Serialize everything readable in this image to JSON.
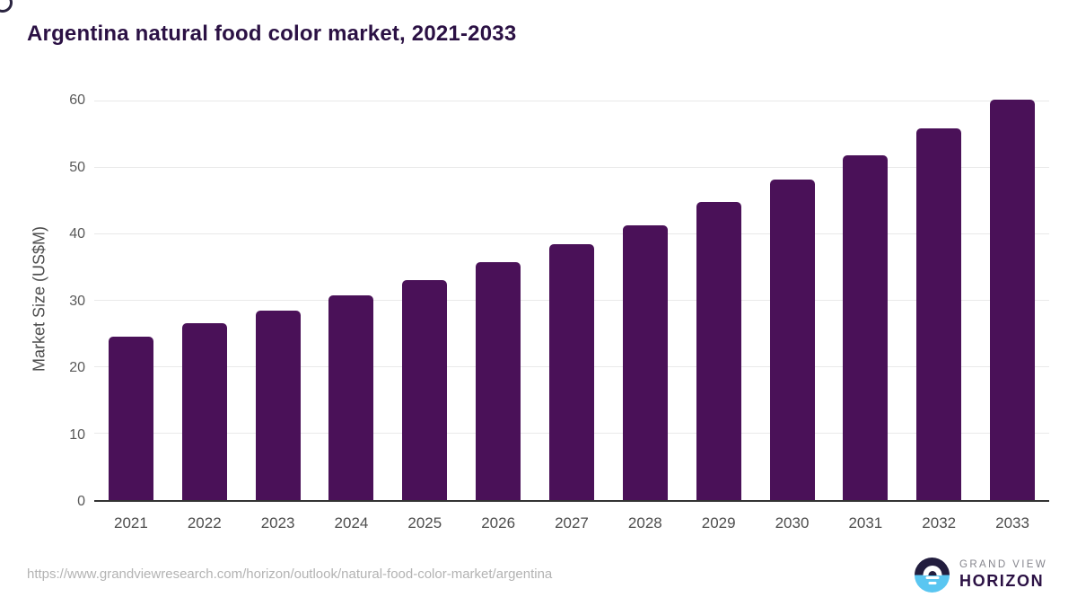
{
  "chart_data": {
    "type": "bar",
    "title": "Argentina natural food color market, 2021-2033",
    "categories": [
      "2021",
      "2022",
      "2023",
      "2024",
      "2025",
      "2026",
      "2027",
      "2028",
      "2029",
      "2030",
      "2031",
      "2032",
      "2033"
    ],
    "values": [
      24.6,
      26.5,
      28.5,
      30.8,
      33.1,
      35.7,
      38.4,
      41.3,
      44.7,
      48.1,
      51.8,
      55.8,
      60.1
    ],
    "xlabel": "",
    "ylabel": "Market Size (US$M)",
    "ylim": [
      0,
      60
    ],
    "yticks": [
      0,
      10,
      20,
      30,
      40,
      50,
      60
    ],
    "grid": "horizontal",
    "legend": "none",
    "bar_color": "#4a1158"
  },
  "footer": {
    "source_url": "https://www.grandviewresearch.com/horizon/outlook/natural-food-color-market/argentina",
    "logo": {
      "icon": "sunrise-circle-icon",
      "top_text": "GRAND VIEW",
      "bottom_text": "HORIZON"
    }
  },
  "colors": {
    "title": "#2b1144",
    "bar": "#4a1158",
    "tick_labels": "#595959",
    "gridline": "#e9e9e9",
    "baseline": "#333333",
    "url_text": "#b3b3b3",
    "logo_dark": "#221d3e",
    "logo_blue": "#5ac6f1",
    "logo_gray_text": "#85858d"
  }
}
